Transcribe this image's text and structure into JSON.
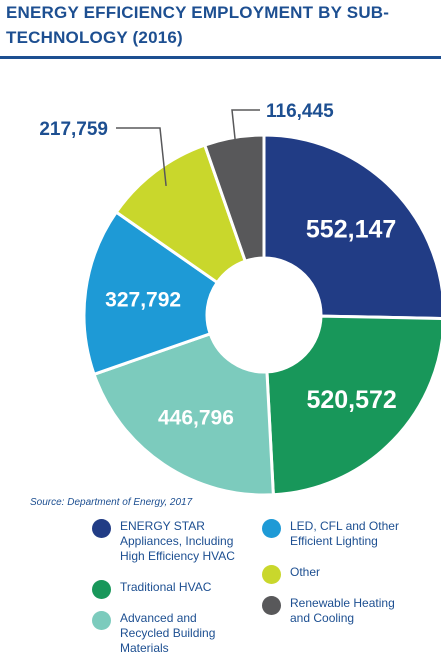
{
  "header": {
    "title": "ENERGY EFFICIENCY EMPLOYMENT BY SUB-\nTECHNOLOGY (2016)"
  },
  "source": "Source: Department of Energy, 2017",
  "colors": {
    "title": "#1d4f91",
    "energy_star": "#213c85",
    "traditional_hvac": "#18975a",
    "advanced_materials": "#7ccbbd",
    "led_lighting": "#1e9ad6",
    "other": "#c9d72c",
    "renewable": "#58585a"
  },
  "chart_data": {
    "type": "pie",
    "donut": true,
    "title": "ENERGY EFFICIENCY EMPLOYMENT BY SUB-TECHNOLOGY (2016)",
    "legend_placement": "bottom",
    "slices": [
      {
        "name": "ENERGY STAR Appliances, Including High Efficiency HVAC",
        "value": 552147,
        "label": "552,147",
        "color": "#213c85"
      },
      {
        "name": "Traditional HVAC",
        "value": 520572,
        "label": "520,572",
        "color": "#18975a"
      },
      {
        "name": "Advanced and Recycled Building Materials",
        "value": 446796,
        "label": "446,796",
        "color": "#7ccbbd"
      },
      {
        "name": "LED, CFL and Other Efficient Lighting",
        "value": 327792,
        "label": "327,792",
        "color": "#1e9ad6"
      },
      {
        "name": "Other",
        "value": 217759,
        "label": "217,759",
        "color": "#c9d72c"
      },
      {
        "name": "Renewable Heating and Cooling",
        "value": 116445,
        "label": "116,445",
        "color": "#58585a"
      }
    ]
  },
  "legend": [
    {
      "label": "ENERGY STAR\nAppliances, Including\nHigh Efficiency HVAC",
      "color": "#213c85"
    },
    {
      "label": "Traditional HVAC",
      "color": "#18975a"
    },
    {
      "label": "Advanced and\nRecycled Building\nMaterials",
      "color": "#7ccbbd"
    },
    {
      "label": "LED, CFL and Other\nEfficient Lighting",
      "color": "#1e9ad6"
    },
    {
      "label": "Other",
      "color": "#c9d72c"
    },
    {
      "label": "Renewable Heating\nand Cooling",
      "color": "#58585a"
    }
  ]
}
